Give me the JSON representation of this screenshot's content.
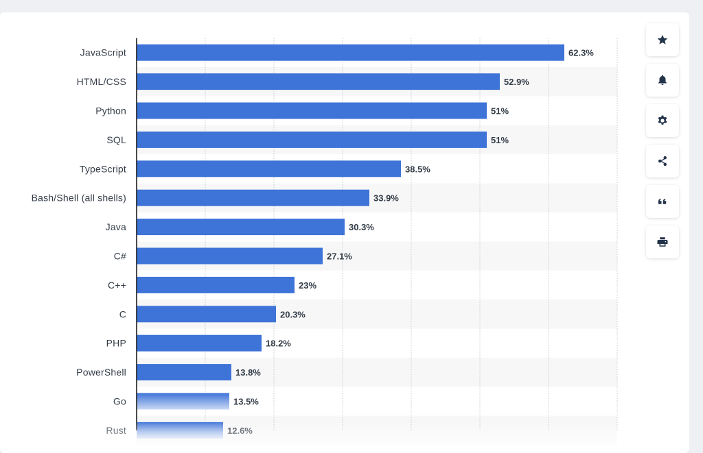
{
  "chart_data": {
    "type": "bar",
    "orientation": "horizontal",
    "categories": [
      "JavaScript",
      "HTML/CSS",
      "Python",
      "SQL",
      "TypeScript",
      "Bash/Shell (all shells)",
      "Java",
      "C#",
      "C++",
      "C",
      "PHP",
      "PowerShell",
      "Go",
      "Rust"
    ],
    "values": [
      62.3,
      52.9,
      51,
      51,
      38.5,
      33.9,
      30.3,
      27.1,
      23,
      20.3,
      18.2,
      13.8,
      13.5,
      12.6
    ],
    "value_labels": [
      "62.3%",
      "52.9%",
      "51%",
      "51%",
      "38.5%",
      "33.9%",
      "30.3%",
      "27.1%",
      "23%",
      "20.3%",
      "18.2%",
      "13.8%",
      "13.5%",
      "12.6%"
    ],
    "xlim": [
      0,
      70
    ],
    "grid": true,
    "bar_color": "#3e73d8",
    "stripe_color": "#f7f7f8"
  },
  "toolbar": [
    {
      "name": "star-icon",
      "label": "Favorite"
    },
    {
      "name": "bell-icon",
      "label": "Notifications"
    },
    {
      "name": "gear-icon",
      "label": "Settings"
    },
    {
      "name": "share-icon",
      "label": "Share"
    },
    {
      "name": "quote-icon",
      "label": "Cite"
    },
    {
      "name": "print-icon",
      "label": "Print"
    }
  ]
}
